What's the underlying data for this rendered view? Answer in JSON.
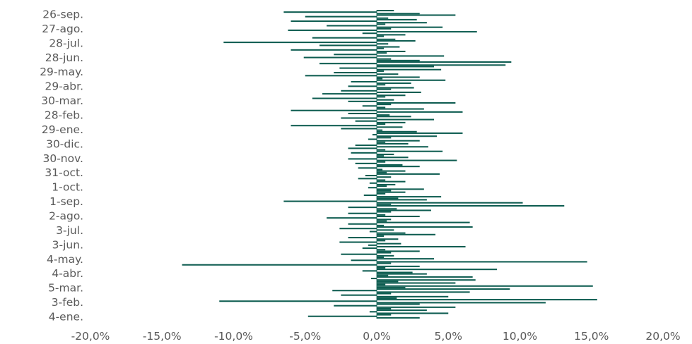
{
  "chart_data": {
    "type": "bar",
    "orientation": "horizontal",
    "title": "",
    "xlabel": "",
    "ylabel": "",
    "xlim": [
      -20,
      20
    ],
    "x_ticks": [
      -20,
      -15,
      -10,
      -5,
      0,
      5,
      10,
      15,
      20
    ],
    "x_tick_labels": [
      "-20,0%",
      "-15,0%",
      "-10,0%",
      "-5,0%",
      "0,0%",
      "5,0%",
      "10,0%",
      "15,0%",
      "20,0%"
    ],
    "y_tick_labels": [
      "26-sep.",
      "27-ago.",
      "28-jul.",
      "28-jun.",
      "29-may.",
      "29-abr.",
      "30-mar.",
      "28-feb.",
      "29-ene.",
      "30-dic.",
      "30-nov.",
      "31-oct.",
      "1-oct.",
      "1-sep.",
      "2-ago.",
      "3-jul.",
      "3-jun.",
      "4-may.",
      "4-abr.",
      "5-mar.",
      "3-feb.",
      "4-ene."
    ],
    "values_pct": [
      1.2,
      -6.5,
      3.0,
      5.5,
      -5.0,
      0.8,
      2.8,
      -6.0,
      3.5,
      0.6,
      -3.5,
      4.6,
      1.0,
      -6.2,
      7.0,
      -1.0,
      2.0,
      0.5,
      -4.5,
      1.3,
      2.7,
      -10.7,
      0.8,
      -4.0,
      1.6,
      0.5,
      -6.0,
      2.0,
      0.7,
      -3.0,
      4.7,
      -5.1,
      1.0,
      3.0,
      9.4,
      -4.0,
      9.0,
      4.0,
      -2.6,
      4.5,
      0.5,
      -3.0,
      1.5,
      -5.0,
      3.0,
      0.4,
      4.8,
      -1.8,
      2.4,
      0.6,
      -2.0,
      2.6,
      1.0,
      -2.5,
      3.1,
      -3.8,
      2.0,
      0.6,
      -4.5,
      1.2,
      -2.0,
      5.5,
      1.0,
      -1.0,
      0.6,
      3.3,
      -6.0,
      6.0,
      -2.0,
      0.9,
      2.4,
      -2.5,
      4.0,
      -1.5,
      2.0,
      0.6,
      -6.0,
      1.8,
      -2.5,
      0.4,
      2.8,
      6.0,
      -0.3,
      4.2,
      1.0,
      -0.6,
      3.0,
      0.6,
      2.2,
      -1.5,
      3.6,
      -2.0,
      0.6,
      4.6,
      -1.8,
      1.2,
      0.5,
      2.2,
      -2.0,
      5.6,
      0.6,
      -1.5,
      1.8,
      3.0,
      -1.3,
      0.4,
      2.0,
      0.7,
      4.4,
      -0.8,
      1.0,
      -1.3,
      0.6,
      2.0,
      -0.5,
      1.3,
      0.7,
      -0.6,
      3.3,
      1.0,
      2.0,
      0.6,
      -0.9,
      4.5,
      1.5,
      3.5,
      -6.5,
      10.2,
      1.0,
      13.1,
      -2.0,
      1.4,
      3.8,
      1.0,
      -2.0,
      0.6,
      3.0,
      -3.5,
      1.0,
      0.7,
      6.5,
      -2.0,
      0.5,
      6.7,
      -2.6,
      1.2,
      -0.5,
      2.0,
      4.1,
      0.5,
      -2.0,
      1.5,
      0.6,
      -2.6,
      1.7,
      -0.6,
      6.2,
      -1.0,
      0.6,
      3.0,
      1.0,
      -2.5,
      1.2,
      0.5,
      4.0,
      -1.8,
      14.7,
      1.0,
      -13.6,
      3.0,
      0.6,
      8.4,
      -1.0,
      2.5,
      3.5,
      0.8,
      6.7,
      -0.4,
      6.9,
      1.5,
      5.5,
      0.6,
      15.1,
      2.0,
      9.3,
      -3.1,
      6.5,
      1.0,
      -2.5,
      5.0,
      1.4,
      15.4,
      -11.0,
      11.8,
      3.0,
      -3.0,
      5.5,
      1.0,
      3.5,
      -0.5,
      5.0,
      1.0,
      -4.8,
      3.0
    ]
  }
}
